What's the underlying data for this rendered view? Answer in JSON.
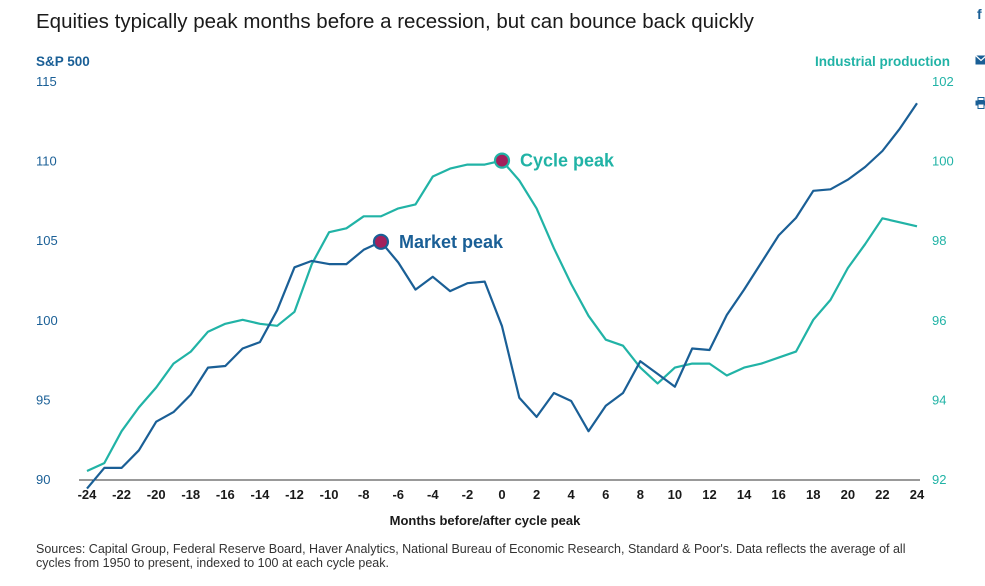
{
  "page": {
    "title": "Equities typically peak months before a recession, but can bounce back quickly",
    "source": "Sources: Capital Group, Federal Reserve Board, Haver Analytics, National Bureau of Economic Research, Standard & Poor's. Data reflects the average of all cycles from 1950 to present, indexed to 100 at each cycle peak.",
    "share": {
      "facebook_label": "f",
      "email_icon": "mail-icon",
      "print_icon": "print-icon"
    }
  },
  "colors": {
    "sp500": "#1a5f96",
    "industrial": "#21b3a6",
    "marker": "#a3205c"
  },
  "chart_data": {
    "type": "line",
    "title": "Equities typically peak months before a recession, but can bounce back quickly",
    "xlabel": "Months before/after cycle peak",
    "ylabel_left": "S&P 500",
    "ylabel_right": "Industrial production",
    "xlim": [
      -24,
      24
    ],
    "ylim_left": [
      90,
      115
    ],
    "ylim_right": [
      92,
      102
    ],
    "x_ticks": [
      -24,
      -22,
      -20,
      -18,
      -16,
      -14,
      -12,
      -10,
      -8,
      -6,
      -4,
      -2,
      0,
      2,
      4,
      6,
      8,
      10,
      12,
      14,
      16,
      18,
      20,
      22,
      24
    ],
    "y_ticks_left": [
      90,
      95,
      100,
      105,
      110,
      115
    ],
    "y_ticks_right": [
      92,
      94,
      96,
      98,
      100,
      102
    ],
    "x": [
      -24,
      -23,
      -22,
      -21,
      -20,
      -19,
      -18,
      -17,
      -16,
      -15,
      -14,
      -13,
      -12,
      -11,
      -10,
      -9,
      -8,
      -7,
      -6,
      -5,
      -4,
      -3,
      -2,
      -1,
      0,
      1,
      2,
      3,
      4,
      5,
      6,
      7,
      8,
      9,
      10,
      11,
      12,
      13,
      14,
      15,
      16,
      17,
      18,
      19,
      20,
      21,
      22,
      23,
      24
    ],
    "series": [
      {
        "name": "S&P 500",
        "axis": "left",
        "values": [
          89.4,
          90.7,
          90.7,
          91.8,
          93.6,
          94.2,
          95.3,
          97.0,
          97.1,
          98.2,
          98.6,
          100.6,
          103.3,
          103.7,
          103.5,
          103.5,
          104.4,
          104.9,
          103.6,
          101.9,
          102.7,
          101.8,
          102.3,
          102.4,
          99.6,
          95.1,
          93.9,
          95.4,
          94.9,
          93.0,
          94.6,
          95.4,
          97.4,
          96.6,
          95.8,
          98.2,
          98.1,
          100.3,
          101.9,
          103.6,
          105.3,
          106.4,
          108.1,
          108.2,
          108.8,
          109.6,
          110.6,
          112.0,
          113.6
        ]
      },
      {
        "name": "Industrial production",
        "axis": "right",
        "values": [
          92.2,
          92.4,
          93.2,
          93.8,
          94.3,
          94.9,
          95.2,
          95.7,
          95.9,
          96.0,
          95.9,
          95.85,
          96.2,
          97.4,
          98.2,
          98.3,
          98.6,
          98.6,
          98.8,
          98.9,
          99.6,
          99.8,
          99.9,
          99.9,
          100.0,
          99.5,
          98.8,
          97.8,
          96.9,
          96.1,
          95.5,
          95.35,
          94.8,
          94.4,
          94.8,
          94.9,
          94.9,
          94.6,
          94.8,
          94.9,
          95.05,
          95.2,
          96.0,
          96.5,
          97.3,
          97.9,
          98.55,
          98.45,
          98.35
        ]
      }
    ],
    "annotations": [
      {
        "label": "Market peak",
        "x": -7,
        "y": 104.9,
        "axis": "left"
      },
      {
        "label": "Cycle peak",
        "x": 0,
        "y": 100.0,
        "axis": "right"
      }
    ]
  }
}
